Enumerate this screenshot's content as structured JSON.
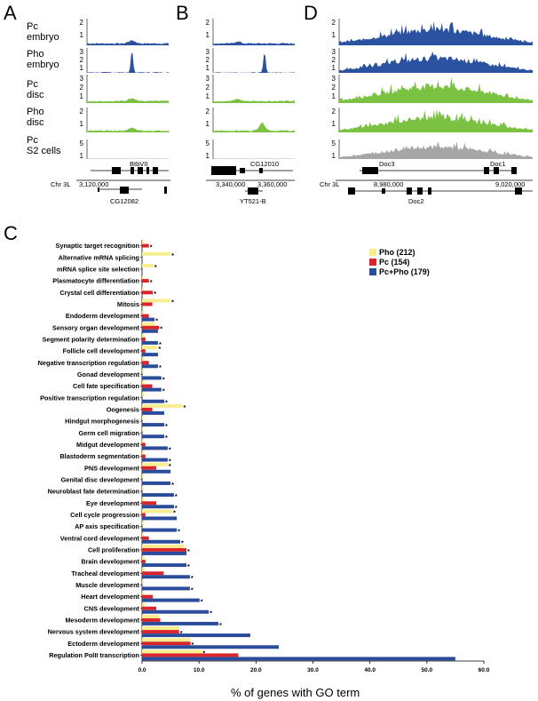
{
  "panel_letters": [
    "A",
    "B",
    "D",
    "C"
  ],
  "track_labels": [
    {
      "line1": "Pc",
      "line2": "embryo"
    },
    {
      "line1": "Pho",
      "line2": "embryo"
    },
    {
      "line1": "Pc",
      "line2": "disc"
    },
    {
      "line1": "Pho",
      "line2": "disc"
    },
    {
      "line1": "Pc",
      "line2": "S2 cells"
    }
  ],
  "track_ticks": [
    [
      "2",
      "1"
    ],
    [
      "3",
      "2",
      "1"
    ],
    [
      "3",
      "2",
      "1"
    ],
    [
      "2",
      "1"
    ],
    [
      "5",
      "1"
    ]
  ],
  "track_ticks_D": [
    [
      "2",
      "1"
    ],
    [
      "3",
      "2",
      "1"
    ],
    [
      "3",
      "2",
      "1"
    ],
    [
      "2",
      "1"
    ],
    [
      "5",
      "1"
    ]
  ],
  "track_colors": [
    "#2b52a0",
    "#2b52a0",
    "#7cc242",
    "#7cc242",
    "#a6a6a6"
  ],
  "panelA": {
    "gene_top": "BtbVII",
    "chrom": "Chr 3L",
    "coord": "3,120,000",
    "gene_bottom": "CG12082"
  },
  "panelB": {
    "gene_top": "CG12010",
    "coord1": "3,340,000",
    "coord2": "3,360,000",
    "gene_bottom": "YT521-B"
  },
  "panelD": {
    "gene_top1": "Doc3",
    "gene_top2": "Doc1",
    "chrom": "Chr 3L",
    "coord1": "8,980,000",
    "coord2": "9,020,000",
    "gene_bottom": "Doc2"
  },
  "chart_data": {
    "type": "bar",
    "orientation": "horizontal",
    "xlabel": "% of genes with GO term",
    "xlim": [
      0,
      60
    ],
    "xticks": [
      "0.0",
      "10.0",
      "20.0",
      "30.0",
      "40.0",
      "50.0",
      "60.0"
    ],
    "series": [
      {
        "name": "Pho (212)",
        "color": "#f7ee8f"
      },
      {
        "name": "Pc (154)",
        "color": "#d8262b"
      },
      {
        "name": "Pc+Pho (179)",
        "color": "#2b4c9b"
      }
    ],
    "categories": [
      "Synaptic target recognition",
      "Alternative mRNA splicing",
      "mRNA splice site selection",
      "Plasmatocyte differentiation",
      "Crystal cell differentiation",
      "Mitosis",
      "Endoderm development",
      "Sensory organ development",
      "Segment polarity determination",
      "Follicle cell development",
      "Negative transcription regulation",
      "Gonad development",
      "Cell fate specification",
      "Positive transcription regulation",
      "Oogenesis",
      "Hindgut morphogenesis",
      "Germ cell migration",
      "Midgut development",
      "Blastoderm segmentation",
      "PNS development",
      "Genital disc development",
      "Neuroblast fate determination",
      "Eye development",
      "Cell cycle progression",
      "AP axis specification",
      "Ventral cord development",
      "Cell proliferation",
      "Brain development",
      "Tracheal development",
      "Muscle development",
      "Heart development",
      "CNS development",
      "Mesoderm development",
      "Nervous system development",
      "Ectoderm development",
      "Regulation PolII transcription"
    ],
    "values": {
      "Pho (212)": [
        0.3,
        5.0,
        2.0,
        0.2,
        0.3,
        5.0,
        0.3,
        2.2,
        0.4,
        2.7,
        0.4,
        0.3,
        0.4,
        0.4,
        7.1,
        0.2,
        0.2,
        0.2,
        0.3,
        4.5,
        0.2,
        0.2,
        0.4,
        5.3,
        0.3,
        0.3,
        7.3,
        0.3,
        0.5,
        0.3,
        0.3,
        0.5,
        3.0,
        6.5,
        8.5,
        10.5
      ],
      "Pc (154)": [
        1.2,
        0.0,
        0.0,
        1.2,
        1.9,
        1.8,
        1.2,
        3.0,
        0.6,
        0.6,
        1.2,
        0.0,
        1.8,
        0.0,
        1.8,
        0.0,
        0.0,
        0.6,
        0.6,
        2.5,
        0.0,
        0.0,
        2.5,
        0.6,
        0.0,
        1.2,
        7.8,
        0.6,
        3.8,
        0.0,
        1.9,
        2.5,
        3.2,
        6.5,
        8.5,
        16.9
      ],
      "Pc+Pho (179)": [
        0.0,
        0.0,
        0.0,
        0.0,
        0.0,
        0.0,
        2.2,
        2.8,
        2.8,
        2.8,
        2.8,
        3.4,
        3.4,
        3.9,
        3.9,
        3.9,
        3.9,
        4.5,
        4.5,
        5.0,
        5.0,
        5.6,
        5.6,
        6.1,
        6.1,
        6.7,
        7.8,
        7.8,
        8.4,
        8.4,
        10.1,
        11.7,
        13.4,
        19.0,
        24.0,
        55.0
      ]
    },
    "star_series": [
      "Pc (154)",
      "Pho (212)",
      "Pho (212)",
      "Pc (154)",
      "Pc (154)",
      "Pho (212)",
      "Pc+Pho (179)",
      "Pc (154)",
      "Pc+Pho (179)",
      "Pho (212)",
      "Pc+Pho (179)",
      "Pc+Pho (179)",
      "Pc+Pho (179)",
      "Pc+Pho (179)",
      "Pho (212)",
      "Pc+Pho (179)",
      "Pc+Pho (179)",
      "Pc+Pho (179)",
      "Pc+Pho (179)",
      "Pho (212)",
      "Pc+Pho (179)",
      "Pc+Pho (179)",
      "Pc+Pho (179)",
      "Pho (212)",
      "Pc+Pho (179)",
      "Pc+Pho (179)",
      "Pc (154)",
      "Pc+Pho (179)",
      "Pc+Pho (179)",
      "Pc+Pho (179)",
      "Pc+Pho (179)",
      "Pc+Pho (179)",
      "Pc+Pho (179)",
      "Pc (154)",
      "Pc (154)",
      "Pho (212)"
    ],
    "star_symbol": "*"
  }
}
